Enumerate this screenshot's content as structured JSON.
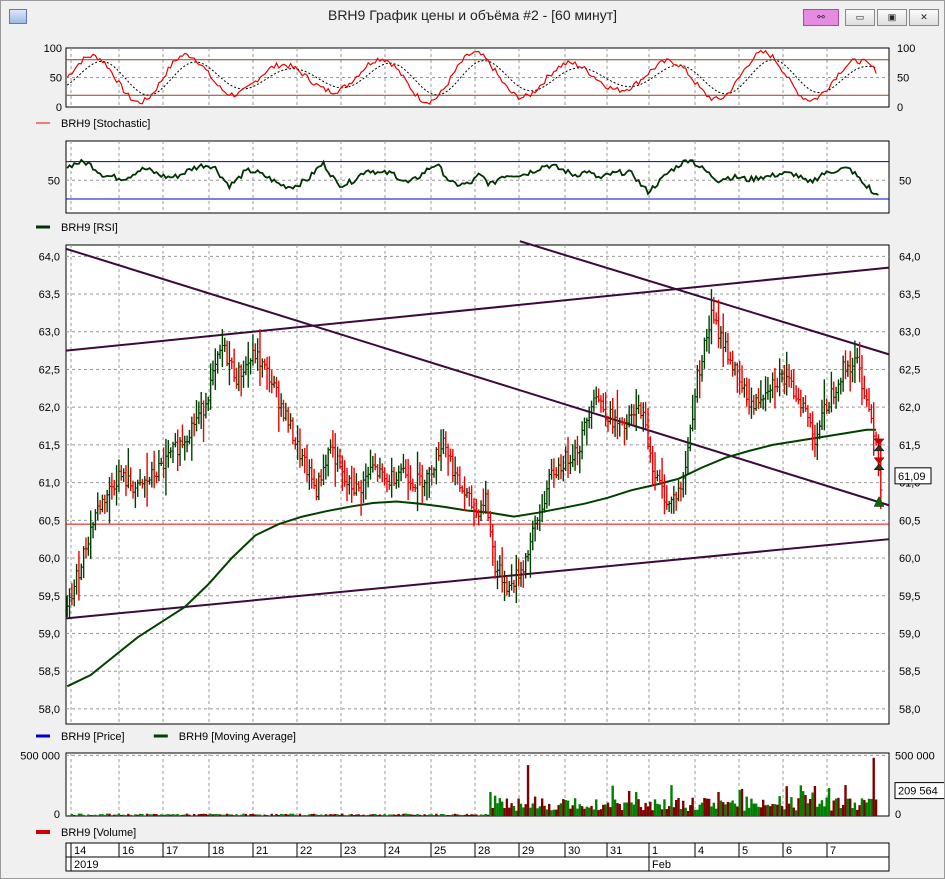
{
  "window": {
    "title": "BRH9 График цены и объёма #2 - [60 минут]",
    "buttons": {
      "context": "⚯",
      "minimize": "▭",
      "maximize": "▣",
      "close": "✕"
    }
  },
  "colors": {
    "price_up": "#004000",
    "price_down": "#ee0000",
    "moving_average": "#004000",
    "trendline": "#3a0a3a",
    "level_line": "#ee0000",
    "stochastic": "#ee0000",
    "stochastic_signal": "#000000",
    "rsi": "#003300",
    "rsi_band": "#0000cc",
    "volume_up": "#008000",
    "volume_down": "#800000",
    "level_bands": "#8b4513"
  },
  "chart_data": [
    {
      "type": "line",
      "name": "stochastic",
      "legend": "BRH9 [Stochastic]",
      "y_ticks": [
        "100",
        "50",
        "0"
      ],
      "ylim": [
        0,
        100
      ],
      "levels": [
        80,
        20
      ],
      "grid": true
    },
    {
      "type": "line",
      "name": "rsi",
      "legend": "BRH9 [RSI]",
      "y_ticks": [
        "50"
      ],
      "ylim": [
        15,
        92
      ],
      "levels": [
        70,
        30
      ],
      "grid": true
    },
    {
      "type": "candlestick",
      "name": "price",
      "legend": [
        "BRH9 [Price]",
        "BRH9 [Moving Average]"
      ],
      "y_ticks": [
        "64,0",
        "63,5",
        "63,0",
        "62,5",
        "62,0",
        "61,5",
        "61,0",
        "60,5",
        "60,0",
        "59,5",
        "59,0",
        "58,5",
        "58,0"
      ],
      "ylim": [
        57.8,
        64.15
      ],
      "last_price": "61,09",
      "level_line": 60.45,
      "close_path": [
        [
          0,
          59.3
        ],
        [
          12,
          60.6
        ],
        [
          22,
          61.1
        ],
        [
          30,
          60.9
        ],
        [
          40,
          61.2
        ],
        [
          50,
          61.6
        ],
        [
          58,
          62.0
        ],
        [
          66,
          62.8
        ],
        [
          72,
          62.4
        ],
        [
          80,
          62.7
        ],
        [
          86,
          62.4
        ],
        [
          94,
          61.8
        ],
        [
          100,
          61.3
        ],
        [
          106,
          60.9
        ],
        [
          112,
          61.5
        ],
        [
          118,
          61.0
        ],
        [
          124,
          60.9
        ],
        [
          130,
          61.2
        ],
        [
          136,
          61.0
        ],
        [
          142,
          61.2
        ],
        [
          148,
          61.0
        ],
        [
          154,
          61.1
        ],
        [
          160,
          61.6
        ],
        [
          166,
          61.0
        ],
        [
          174,
          60.6
        ],
        [
          178,
          60.8
        ],
        [
          182,
          59.9
        ],
        [
          188,
          59.6
        ],
        [
          194,
          59.9
        ],
        [
          200,
          60.5
        ],
        [
          206,
          61.1
        ],
        [
          212,
          61.3
        ],
        [
          218,
          61.5
        ],
        [
          224,
          62.2
        ],
        [
          230,
          61.9
        ],
        [
          236,
          61.7
        ],
        [
          244,
          62.0
        ],
        [
          250,
          61.1
        ],
        [
          256,
          60.7
        ],
        [
          262,
          61.0
        ],
        [
          268,
          62.4
        ],
        [
          274,
          63.2
        ],
        [
          280,
          62.8
        ],
        [
          286,
          62.3
        ],
        [
          292,
          62.0
        ],
        [
          298,
          62.3
        ],
        [
          304,
          62.4
        ],
        [
          312,
          62.1
        ],
        [
          318,
          61.6
        ],
        [
          324,
          62.1
        ],
        [
          330,
          62.5
        ],
        [
          336,
          62.6
        ],
        [
          340,
          62.1
        ],
        [
          344,
          61.6
        ],
        [
          346,
          60.9
        ]
      ],
      "high_low_spread": [
        0.18,
        0.3,
        0.5,
        0.22,
        0.12,
        0.4,
        0.2,
        0.35
      ],
      "moving_average": [
        [
          0,
          58.3
        ],
        [
          10,
          58.45
        ],
        [
          20,
          58.7
        ],
        [
          30,
          58.95
        ],
        [
          40,
          59.15
        ],
        [
          50,
          59.35
        ],
        [
          60,
          59.65
        ],
        [
          70,
          60.0
        ],
        [
          80,
          60.3
        ],
        [
          90,
          60.45
        ],
        [
          100,
          60.55
        ],
        [
          110,
          60.62
        ],
        [
          120,
          60.68
        ],
        [
          130,
          60.73
        ],
        [
          140,
          60.75
        ],
        [
          150,
          60.72
        ],
        [
          160,
          60.68
        ],
        [
          170,
          60.63
        ],
        [
          180,
          60.6
        ],
        [
          190,
          60.55
        ],
        [
          200,
          60.6
        ],
        [
          210,
          60.66
        ],
        [
          220,
          60.72
        ],
        [
          230,
          60.8
        ],
        [
          240,
          60.9
        ],
        [
          250,
          60.97
        ],
        [
          260,
          61.05
        ],
        [
          270,
          61.2
        ],
        [
          280,
          61.33
        ],
        [
          290,
          61.42
        ],
        [
          300,
          61.5
        ],
        [
          310,
          61.55
        ],
        [
          320,
          61.6
        ],
        [
          330,
          61.65
        ],
        [
          340,
          61.7
        ],
        [
          344,
          61.7
        ]
      ],
      "trendlines": [
        {
          "x": [
            0,
            350
          ],
          "y": [
            62.75,
            63.85
          ]
        },
        {
          "x": [
            0,
            350
          ],
          "y": [
            64.1,
            60.7
          ]
        },
        {
          "x": [
            0,
            350
          ],
          "y": [
            59.2,
            60.25
          ]
        },
        {
          "x": [
            193,
            350
          ],
          "y": [
            64.2,
            62.7
          ]
        }
      ],
      "signals": [
        {
          "x": 344,
          "y": 61.5,
          "kind": "sell"
        },
        {
          "x": 344,
          "y": 61.25,
          "kind": "sell"
        },
        {
          "x": 344,
          "y": 60.75,
          "kind": "buy"
        }
      ],
      "grid": true
    },
    {
      "type": "bar",
      "name": "volume",
      "legend": "BRH9 [Volume]",
      "y_ticks": [
        "500 000",
        "0"
      ],
      "ylim": [
        0,
        520000
      ],
      "last_volume": "209 564",
      "grid": true
    }
  ],
  "time_axis": {
    "day_labels": [
      "14",
      "16",
      "17",
      "18",
      "21",
      "22",
      "23",
      "24",
      "25",
      "28",
      "29",
      "30",
      "31",
      "1",
      "4",
      "5",
      "6",
      "7"
    ],
    "period_labels": [
      {
        "text": "2019",
        "at": "14"
      },
      {
        "text": "Feb",
        "at": "1"
      }
    ]
  }
}
